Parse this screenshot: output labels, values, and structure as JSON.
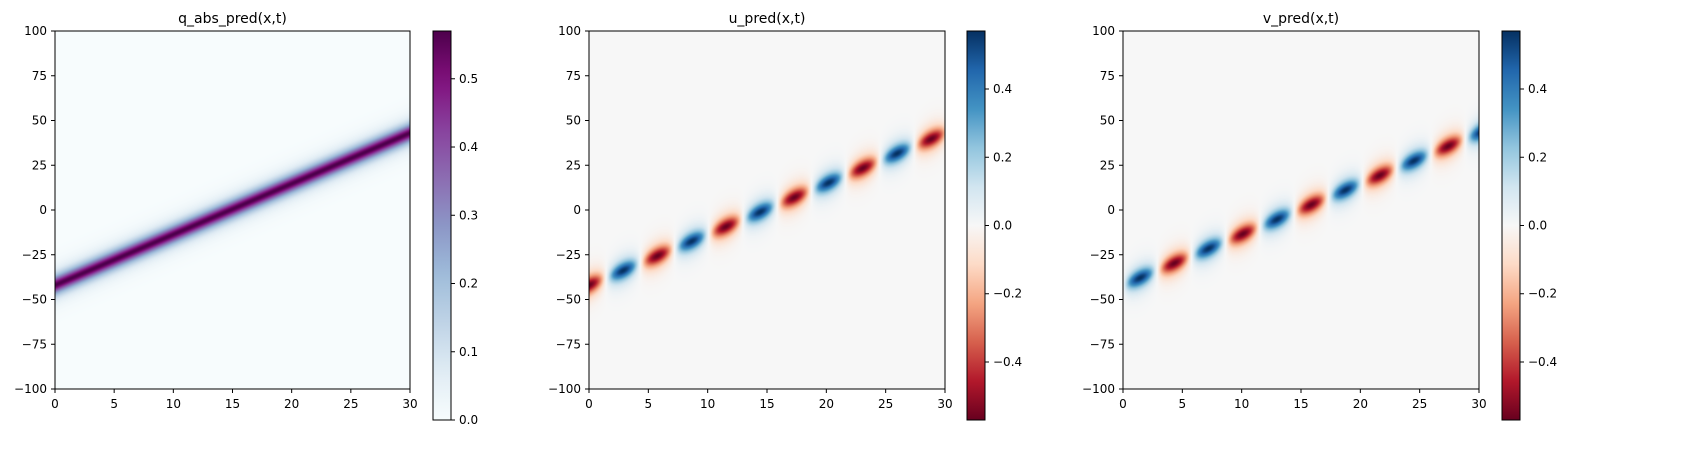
{
  "chart_data": [
    {
      "type": "heatmap",
      "title": "q_abs_pred(x,t)",
      "xlabel": "",
      "ylabel": "",
      "xlim": [
        0,
        30
      ],
      "ylim": [
        -100,
        100
      ],
      "xticks": [
        "0",
        "5",
        "10",
        "15",
        "20",
        "25",
        "30"
      ],
      "yticks": [
        "100",
        "75",
        "50",
        "25",
        "0",
        "−25",
        "−50",
        "−75",
        "−100"
      ],
      "colormap": "BuPu",
      "color_range": [
        0.0,
        0.57
      ],
      "colorbar_ticks": [
        "0.0",
        "0.1",
        "0.2",
        "0.3",
        "0.4",
        "0.5"
      ],
      "field": {
        "kind": "magnitude",
        "center_start": -42,
        "center_end": 43,
        "amplitude": 0.57,
        "carrier_periods": 0,
        "sign": 1
      }
    },
    {
      "type": "heatmap",
      "title": "u_pred(x,t)",
      "xlabel": "",
      "ylabel": "",
      "xlim": [
        0,
        30
      ],
      "ylim": [
        -100,
        100
      ],
      "xticks": [
        "0",
        "5",
        "10",
        "15",
        "20",
        "25",
        "30"
      ],
      "yticks": [
        "100",
        "75",
        "50",
        "25",
        "0",
        "−25",
        "−50",
        "−75",
        "−100"
      ],
      "colormap": "RdBu",
      "color_range": [
        -0.57,
        0.57
      ],
      "colorbar_ticks": [
        "0.4",
        "0.2",
        "0.0",
        "−0.2",
        "−0.4"
      ],
      "field": {
        "kind": "real",
        "center_start": -42,
        "center_end": 43,
        "amplitude": 0.57,
        "carrier_periods": 5.2,
        "sign": 1
      }
    },
    {
      "type": "heatmap",
      "title": "v_pred(x,t)",
      "xlabel": "",
      "ylabel": "",
      "xlim": [
        0,
        30
      ],
      "ylim": [
        -100,
        100
      ],
      "xticks": [
        "0",
        "5",
        "10",
        "15",
        "20",
        "25",
        "30"
      ],
      "yticks": [
        "100",
        "75",
        "50",
        "25",
        "0",
        "−25",
        "−50",
        "−75",
        "−100"
      ],
      "colormap": "RdBu",
      "color_range": [
        -0.57,
        0.57
      ],
      "colorbar_ticks": [
        "0.4",
        "0.2",
        "0.0",
        "−0.2",
        "−0.4"
      ],
      "field": {
        "kind": "imag",
        "center_start": -42,
        "center_end": 43,
        "amplitude": 0.57,
        "carrier_periods": 5.2,
        "sign": 1
      }
    }
  ]
}
